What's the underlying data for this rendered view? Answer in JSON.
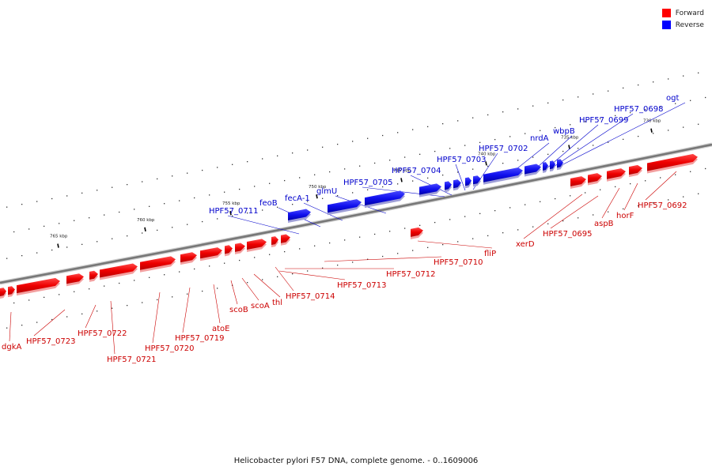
{
  "colors": {
    "forward": "#ff0000",
    "reverse": "#0000ff",
    "forward_label": "#cc0000",
    "reverse_label": "#0000cc",
    "backbone": "#777777"
  },
  "legend": {
    "forward": "Forward",
    "reverse": "Reverse"
  },
  "caption": "Helicobacter pylori F57 DNA, complete genome. - 0..1609006",
  "scale": {
    "ticks": [
      {
        "kb": 735,
        "label": "735 kbp"
      },
      {
        "kb": 740,
        "label": "740 kbp"
      },
      {
        "kb": 745,
        "label": "745 kbp"
      },
      {
        "kb": 750,
        "label": "750 kbp"
      },
      {
        "kb": 755,
        "label": "755 kbp"
      },
      {
        "kb": 760,
        "label": "760 kbp"
      },
      {
        "kb": 765,
        "label": "765 kbp"
      },
      {
        "kb": 730,
        "label": "730 kbp"
      }
    ]
  },
  "genes": {
    "reverse": [
      {
        "name": "HPF57_0711"
      },
      {
        "name": "feoB"
      },
      {
        "name": "fecA-1"
      },
      {
        "name": "glmU"
      },
      {
        "name": "HPF57_0705"
      },
      {
        "name": "HPF57_0704"
      },
      {
        "name": "HPF57_0703"
      },
      {
        "name": "HPF57_0702"
      },
      {
        "name": "nrdA"
      },
      {
        "name": "wbpB"
      },
      {
        "name": "HPF57_0699"
      },
      {
        "name": "HPF57_0698"
      },
      {
        "name": "ogt"
      }
    ],
    "forward": [
      {
        "name": "dgkA"
      },
      {
        "name": "HPF57_0723"
      },
      {
        "name": "HPF57_0722"
      },
      {
        "name": "HPF57_0721"
      },
      {
        "name": "HPF57_0720"
      },
      {
        "name": "HPF57_0719"
      },
      {
        "name": "atoE"
      },
      {
        "name": "scoB"
      },
      {
        "name": "scoA"
      },
      {
        "name": "thl"
      },
      {
        "name": "HPF57_0714"
      },
      {
        "name": "HPF57_0713"
      },
      {
        "name": "HPF57_0712"
      },
      {
        "name": "HPF57_0710"
      },
      {
        "name": "fliP"
      },
      {
        "name": "xerD"
      },
      {
        "name": "HPF57_0695"
      },
      {
        "name": "aspB"
      },
      {
        "name": "horF"
      },
      {
        "name": "HPF57_0692"
      }
    ]
  }
}
